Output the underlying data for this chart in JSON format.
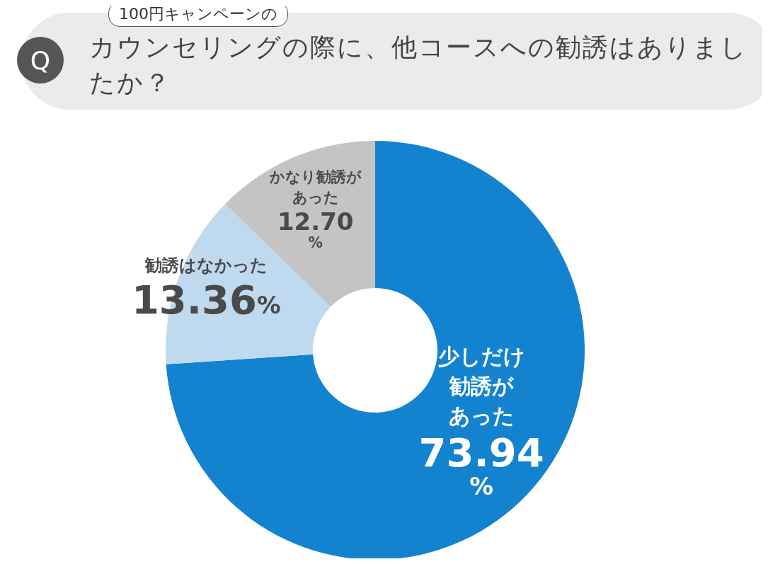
{
  "chart_data": {
    "type": "donut",
    "subtitle": "100円キャンペーンの",
    "title": "カウンセリングの際に、他コースへの勧誘はありましたか？",
    "annotations": [
      "Q"
    ],
    "categories": [
      "少しだけ勧誘があった",
      "勧誘はなかった",
      "かなり勧誘があった"
    ],
    "values": [
      73.94,
      13.36,
      12.7
    ],
    "colors": [
      "#1483cf",
      "#bfd9ef",
      "#c4c4c4"
    ],
    "value_labels": [
      "73.94%",
      "13.36%",
      "12.70%"
    ],
    "legend": false
  }
}
